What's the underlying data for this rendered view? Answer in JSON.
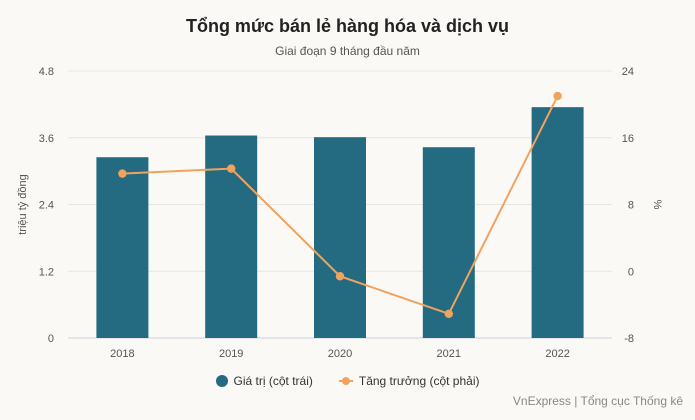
{
  "chart_data": {
    "type": "bar",
    "title": "Tổng mức bán lẻ hàng hóa và dịch vụ",
    "subtitle": "Giai đoạn 9 tháng đầu năm",
    "categories": [
      "2018",
      "2019",
      "2020",
      "2021",
      "2022"
    ],
    "series": [
      {
        "name": "Giá trị (cột trái)",
        "type": "bar",
        "axis": "left",
        "color": "#246b82",
        "values": [
          3.25,
          3.64,
          3.61,
          3.43,
          4.15
        ]
      },
      {
        "name": "Tăng trưởng (cột phải)",
        "type": "line",
        "axis": "right",
        "color": "#f0a35e",
        "values": [
          11.7,
          12.3,
          -0.6,
          -5.1,
          21.0
        ]
      }
    ],
    "ylabel": "triệu tỷ đồng",
    "ylim": [
      0,
      4.8
    ],
    "yticks": [
      "0",
      "1.2",
      "2.4",
      "3.6",
      "4.8"
    ],
    "y2label": "%",
    "y2lim": [
      -8,
      24
    ],
    "y2ticks": [
      "-8",
      "0",
      "8",
      "16",
      "24"
    ],
    "grid": true,
    "legend": "bottom-center"
  },
  "source": "VnExpress | Tổng cục Thống kê"
}
